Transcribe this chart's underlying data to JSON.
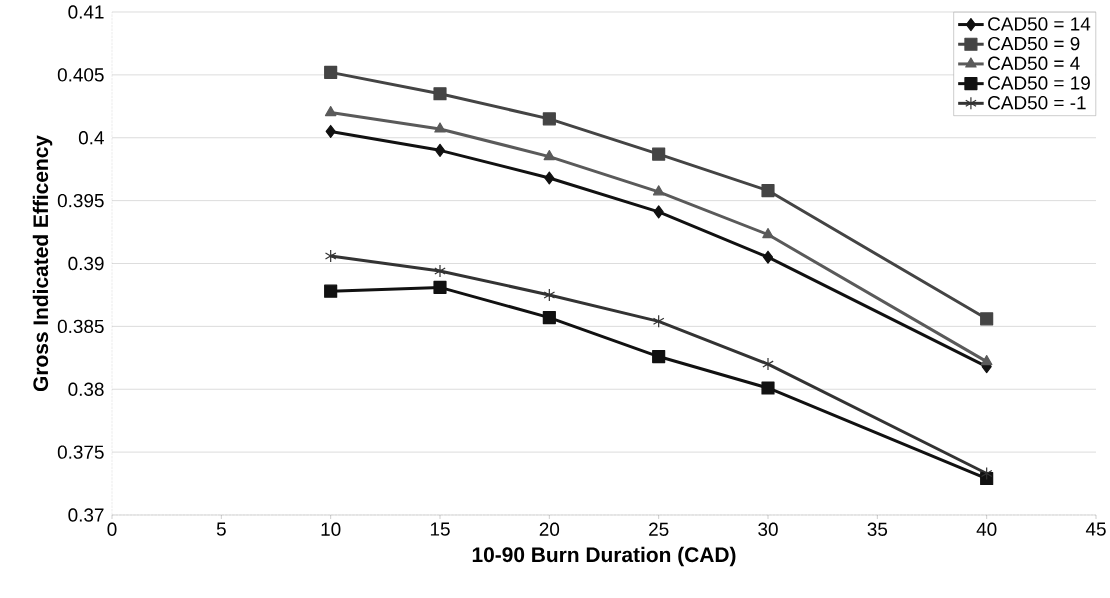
{
  "chart_data": {
    "type": "line",
    "xlabel": "10-90 Burn Duration (CAD)",
    "ylabel": "Gross Indicated Efficency",
    "x": [
      10,
      15,
      20,
      25,
      30,
      40
    ],
    "series": [
      {
        "name": "CAD50 = 14",
        "color": "#111111",
        "marker": "diamond",
        "values": [
          0.4005,
          0.399,
          0.3968,
          0.3941,
          0.3905,
          0.3818
        ]
      },
      {
        "name": "CAD50 = 9",
        "color": "#444444",
        "marker": "square",
        "values": [
          0.4052,
          0.4035,
          0.4015,
          0.3987,
          0.3958,
          0.3856
        ]
      },
      {
        "name": "CAD50 = 4",
        "color": "#5a5a5a",
        "marker": "triangle",
        "values": [
          0.402,
          0.4007,
          0.3985,
          0.3957,
          0.3923,
          0.3822
        ]
      },
      {
        "name": "CAD50 = 19",
        "color": "#111111",
        "marker": "square",
        "values": [
          0.3878,
          0.3881,
          0.3857,
          0.3826,
          0.3801,
          0.3729
        ]
      },
      {
        "name": "CAD50 = -1",
        "color": "#333333",
        "marker": "cross",
        "values": [
          0.3906,
          0.3894,
          0.3875,
          0.3854,
          0.382,
          0.3733
        ]
      }
    ],
    "xlim": [
      0,
      45
    ],
    "xticks": [
      0,
      5,
      10,
      15,
      20,
      25,
      30,
      35,
      40,
      45
    ],
    "ylim": [
      0.37,
      0.41
    ],
    "yticks": [
      0.37,
      0.375,
      0.38,
      0.385,
      0.39,
      0.395,
      0.4,
      0.405,
      0.41
    ],
    "grid": "y",
    "legend": "top right",
    "line_style": "solid"
  }
}
